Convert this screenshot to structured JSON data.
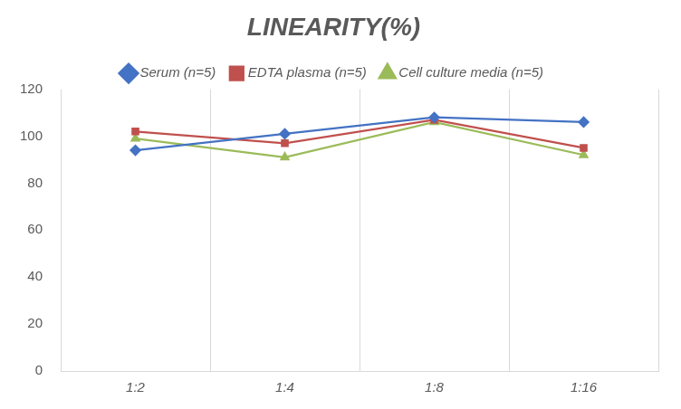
{
  "chart_data": {
    "type": "line",
    "title": "LINEARITY(%)",
    "categories": [
      "1:2",
      "1:4",
      "1:8",
      "1:16"
    ],
    "series": [
      {
        "name": "Serum (n=5)",
        "color": "#4472c4",
        "marker": "diamond",
        "values": [
          94,
          101,
          108,
          106
        ]
      },
      {
        "name": "EDTA plasma (n=5)",
        "color": "#c0504d",
        "marker": "square",
        "values": [
          102,
          97,
          107,
          95
        ]
      },
      {
        "name": "Cell culture media (n=5)",
        "color": "#9bbb59",
        "marker": "triangle",
        "values": [
          99,
          91,
          106,
          92
        ]
      }
    ],
    "ylim": [
      0,
      120
    ],
    "yticks": [
      0,
      20,
      40,
      60,
      80,
      100,
      120
    ],
    "grid": true,
    "legend": "top"
  }
}
